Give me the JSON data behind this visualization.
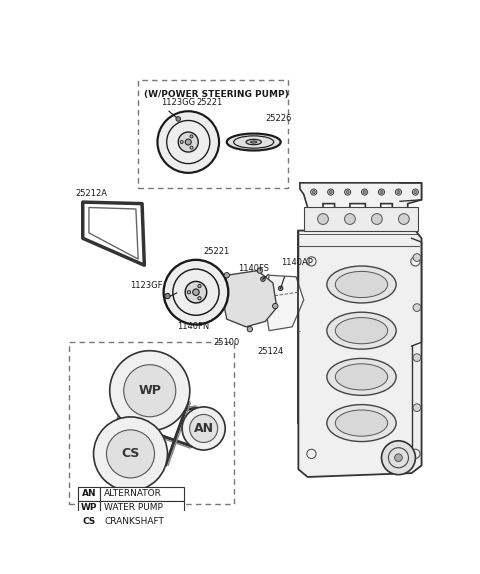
{
  "bg_color": "#ffffff",
  "line_color": "#1a1a1a",
  "wp_box_label": "(W/POWER STEERING PUMP)",
  "legend_entries": [
    [
      "AN",
      "ALTERNATOR"
    ],
    [
      "WP",
      "WATER PUMP"
    ],
    [
      "CS",
      "CRANKSHAFT"
    ]
  ]
}
